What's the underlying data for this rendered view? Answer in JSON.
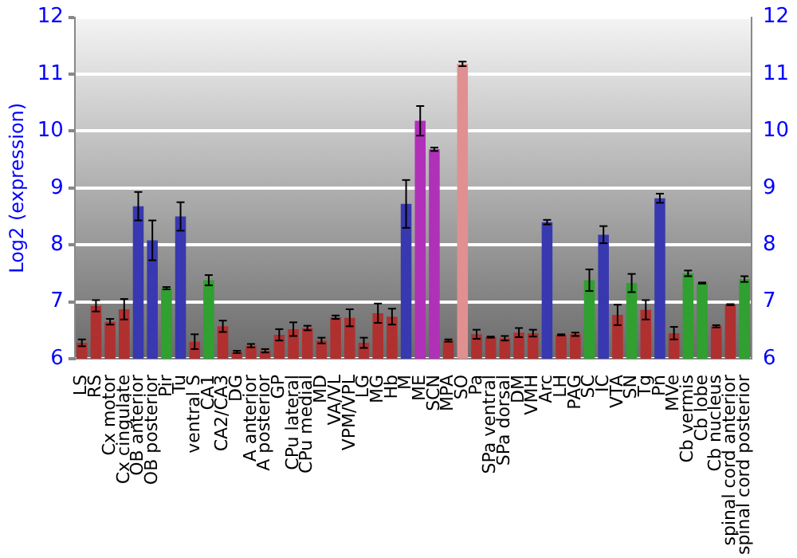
{
  "chart_data": {
    "type": "bar",
    "ylabel": "Log2 (expression)",
    "categories": [
      "LS",
      "RS",
      "Cx motor",
      "Cx cingulate",
      "OB anterior",
      "OB posterior",
      "Pir",
      "Tu",
      "ventral S",
      "CA1",
      "CA2/CA3",
      "DG",
      "A anterior",
      "A posterior",
      "GP",
      "CPu lateral",
      "CPu medial",
      "MD",
      "VA/VL",
      "VPM/VPL",
      "LG",
      "MG",
      "Hb",
      "M",
      "ME",
      "SCN",
      "MPA",
      "SO",
      "Pa",
      "SPa ventral",
      "SPa dorsal",
      "DM",
      "VMH",
      "Arc",
      "LH",
      "PAG",
      "SC",
      "IC",
      "VTA",
      "SN",
      "Tg",
      "Pn",
      "MVe",
      "Cb vermis",
      "Cb lobe",
      "Cb nucleus",
      "spinal cord anterior",
      "spinal cord posterior"
    ],
    "values": [
      6.28,
      6.93,
      6.65,
      6.87,
      8.68,
      8.08,
      7.24,
      8.5,
      6.3,
      7.38,
      6.57,
      6.12,
      6.23,
      6.14,
      6.42,
      6.52,
      6.54,
      6.32,
      6.73,
      6.72,
      6.28,
      6.8,
      6.74,
      8.72,
      10.18,
      9.68,
      6.32,
      11.18,
      6.43,
      6.38,
      6.36,
      6.46,
      6.45,
      8.4,
      6.42,
      6.43,
      7.38,
      8.18,
      6.77,
      7.33,
      6.86,
      8.82,
      6.45,
      7.5,
      7.33,
      6.57,
      6.95,
      7.4
    ],
    "errors": [
      0.06,
      0.1,
      0.05,
      0.18,
      0.25,
      0.35,
      0.02,
      0.25,
      0.13,
      0.09,
      0.1,
      0.02,
      0.03,
      0.03,
      0.1,
      0.12,
      0.04,
      0.05,
      0.03,
      0.15,
      0.09,
      0.17,
      0.14,
      0.42,
      0.26,
      0.03,
      0.02,
      0.04,
      0.08,
      0.01,
      0.04,
      0.08,
      0.06,
      0.04,
      0.01,
      0.03,
      0.19,
      0.15,
      0.18,
      0.16,
      0.17,
      0.08,
      0.11,
      0.05,
      0.01,
      0.02,
      0.01,
      0.05
    ],
    "colors": [
      "#b03030",
      "#b03030",
      "#b03030",
      "#b03030",
      "#3838b0",
      "#3838b0",
      "#30a030",
      "#3838b0",
      "#b03030",
      "#30a030",
      "#b03030",
      "#b03030",
      "#b03030",
      "#b03030",
      "#b03030",
      "#b03030",
      "#b03030",
      "#b03030",
      "#b03030",
      "#b03030",
      "#b03030",
      "#b03030",
      "#b03030",
      "#3838b0",
      "#b030b8",
      "#b030b8",
      "#b03030",
      "#e09090",
      "#b03030",
      "#b03030",
      "#b03030",
      "#b03030",
      "#b03030",
      "#3838b0",
      "#b03030",
      "#b03030",
      "#30a030",
      "#3838b0",
      "#b03030",
      "#30a030",
      "#b03030",
      "#3838b0",
      "#b03030",
      "#30a030",
      "#30a030",
      "#b03030",
      "#b03030",
      "#30a030"
    ],
    "ylim": [
      6,
      12
    ],
    "yticks": [
      6,
      7,
      8,
      9,
      10,
      11,
      12
    ],
    "y2lim": [
      6,
      12
    ],
    "y2ticks": [
      6,
      7,
      8,
      9,
      10,
      11,
      12
    ],
    "grid": "y",
    "legend": false
  }
}
